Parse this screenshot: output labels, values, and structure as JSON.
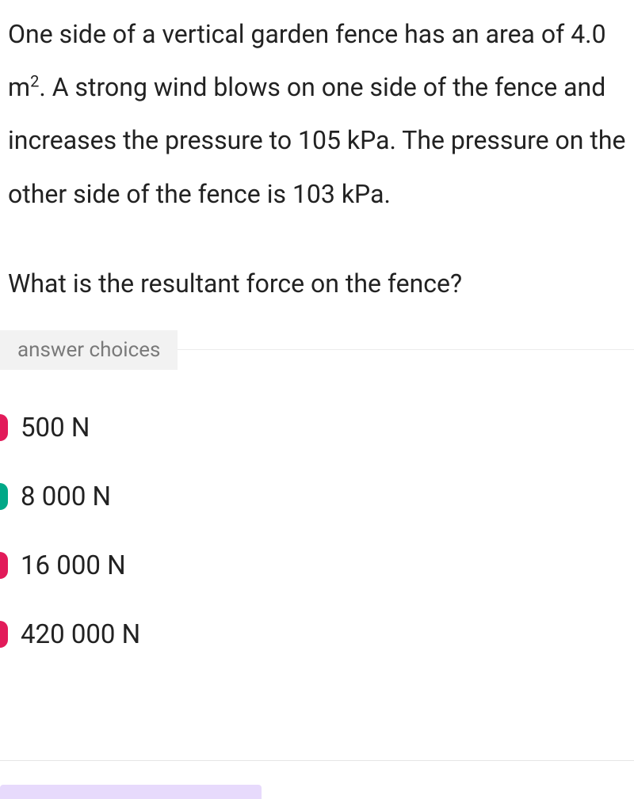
{
  "question": {
    "body_html": "One side of a vertical garden fence has an area of 4.0 m<sup>2</sup>. A strong wind blows on one side of the fence and increases the pressure to 105 kPa. The pressure on the other side of the fence is 103 kPa.",
    "prompt": "What is the resultant force on the fence?"
  },
  "answer_choices_label": "answer choices",
  "choices": [
    {
      "label": "500 N",
      "marker_color": "#e21b5a",
      "correct": false
    },
    {
      "label": "8 000 N",
      "marker_color": "#00a887",
      "correct": true
    },
    {
      "label": "16 000 N",
      "marker_color": "#e21b5a",
      "correct": false
    },
    {
      "label": "420 000 N",
      "marker_color": "#e21b5a",
      "correct": false
    }
  ],
  "colors": {
    "text": "#222222",
    "muted_text": "#7a7a7a",
    "label_bg": "#f2f2f2",
    "divider": "#ececec",
    "bottom_divider": "#e6e6e6",
    "bottom_bar": "#e7dafc",
    "background": "#ffffff"
  },
  "typography": {
    "body_fontsize": 32,
    "choice_fontsize": 33,
    "label_fontsize": 26
  }
}
